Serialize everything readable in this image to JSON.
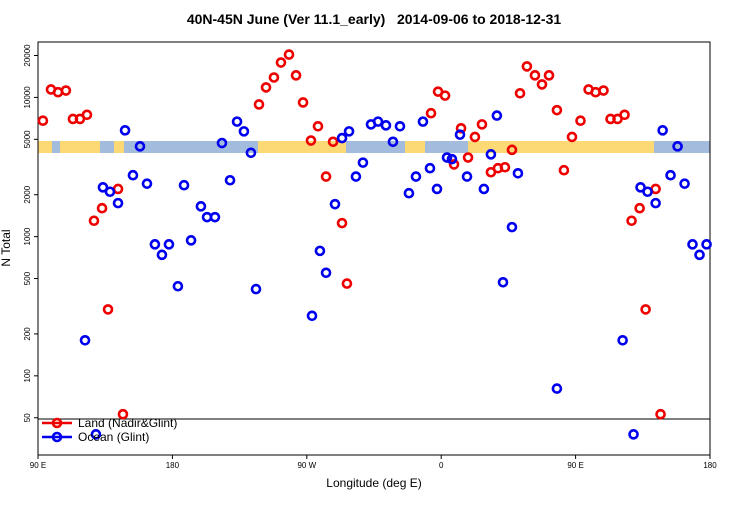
{
  "chart_data": {
    "type": "scatter",
    "title": "40N-45N June (Ver 11.1_early)   2014-09-06 to 2018-12-31",
    "x_label": "Longitude (deg E)",
    "y_label": "N Total",
    "log_y": true,
    "xlim": [
      90,
      540
    ],
    "ylim": [
      27,
      25000
    ],
    "xticks": [
      {
        "value": 90,
        "label": "90 E"
      },
      180,
      {
        "value": 270,
        "label": "90 W"
      },
      {
        "value": 360,
        "label": "0"
      },
      {
        "value": 450,
        "label": "90 E"
      },
      {
        "value": 540,
        "label": "180"
      }
    ],
    "yticks": [
      50,
      100,
      200,
      500,
      1000,
      2000,
      5000,
      10000,
      20000
    ],
    "legend": "bottom-left",
    "series": [
      {
        "name": "Land (Nadir&Glint)",
        "color": "#ee0000",
        "x": [
          93.3,
          98.7,
          103.4,
          108.7,
          113.4,
          118.1,
          122.8,
          127.5,
          132.9,
          136.9,
          143.6,
          146.9,
          238.0,
          242.7,
          248.0,
          252.7,
          258.1,
          262.8,
          267.5,
          272.8,
          277.5,
          282.9,
          287.6,
          293.6,
          296.9,
          353.2,
          357.9,
          362.6,
          368.6,
          373.3,
          378.0,
          382.6,
          387.3,
          393.3,
          398.0,
          402.7,
          407.4,
          412.8,
          417.4,
          422.8,
          427.5,
          432.2,
          437.5,
          442.2,
          447.6,
          453.3,
          458.7,
          463.4,
          468.7,
          473.4,
          478.1,
          482.8,
          487.5,
          492.9,
          496.9,
          503.6,
          506.9
        ],
        "values": [
          6800,
          11400,
          10900,
          11200,
          7000,
          7000,
          7500,
          1300,
          1600,
          300,
          2200,
          53,
          8900,
          11800,
          13900,
          17800,
          20300,
          14400,
          9200,
          4900,
          6200,
          2700,
          4800,
          1250,
          460,
          7700,
          11000,
          10300,
          3300,
          6000,
          3700,
          5200,
          6400,
          2900,
          3100,
          3150,
          4200,
          10700,
          16700,
          14400,
          12400,
          14400,
          8100,
          3000,
          5200,
          6800,
          11400,
          10900,
          11200,
          7000,
          7000,
          7500,
          1300,
          1600,
          300,
          2200,
          53
        ]
      },
      {
        "name": "Ocean (Glint)",
        "color": "#0000ee",
        "x": [
          121.5,
          128.8,
          133.5,
          138.2,
          143.6,
          148.3,
          153.6,
          158.3,
          163.0,
          168.3,
          173.0,
          177.7,
          183.7,
          187.8,
          192.5,
          199.1,
          203.2,
          208.5,
          213.2,
          218.6,
          223.3,
          227.9,
          232.6,
          236.0,
          273.5,
          278.8,
          282.9,
          288.9,
          293.6,
          298.3,
          302.9,
          307.6,
          313.0,
          317.7,
          323.0,
          327.7,
          332.4,
          338.4,
          343.1,
          347.8,
          352.5,
          357.2,
          363.9,
          367.2,
          372.6,
          377.3,
          388.6,
          393.3,
          397.3,
          401.4,
          407.4,
          411.4,
          437.5,
          481.5,
          488.8,
          493.5,
          498.2,
          503.6,
          508.3,
          513.6,
          518.3,
          523.0,
          528.3,
          533.0,
          537.7
        ],
        "values": [
          180,
          38,
          2260,
          2100,
          1740,
          5800,
          2760,
          4450,
          2400,
          880,
          740,
          880,
          440,
          2340,
          940,
          1650,
          1380,
          1380,
          4700,
          2540,
          6700,
          5700,
          4000,
          420,
          270,
          790,
          550,
          1710,
          5100,
          5700,
          2700,
          3400,
          6400,
          6700,
          6300,
          4800,
          6200,
          2050,
          2700,
          6700,
          3100,
          2200,
          3700,
          3600,
          5400,
          2700,
          2200,
          3900,
          7400,
          470,
          1170,
          2850,
          81,
          180,
          38,
          2260,
          2100,
          1740,
          5800,
          2760,
          4450,
          2400,
          880,
          740,
          880
        ]
      }
    ]
  }
}
